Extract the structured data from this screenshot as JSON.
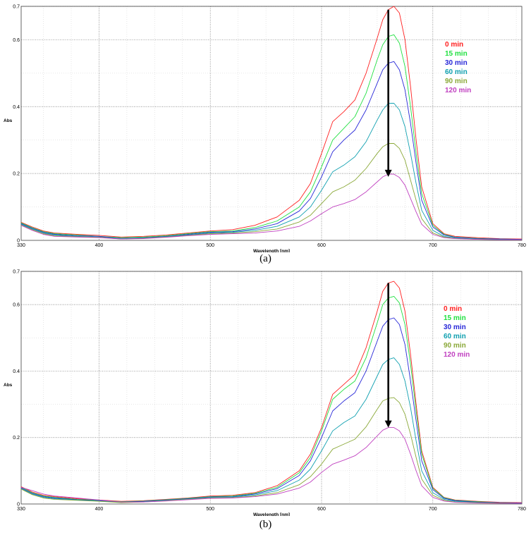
{
  "chart_data": [
    {
      "type": "line",
      "caption": "(a)",
      "xlabel": "Wavelength [nm]",
      "ylabel": "Abs",
      "xlim": [
        330,
        780
      ],
      "ylim": [
        0,
        0.7
      ],
      "xticks": [
        330,
        400,
        500,
        600,
        700,
        780
      ],
      "yticks": [
        0,
        0.2,
        0.4,
        0.6,
        0.7
      ],
      "ytick_labels": [
        "0",
        "0.2",
        "0.4",
        "0.6",
        "0.7"
      ],
      "grid": true,
      "legend_position": "top-right",
      "annotation": "arrow pointing down at peak",
      "arrow": {
        "x": 660,
        "y_from": 0.69,
        "y_to": 0.19
      },
      "series": [
        {
          "name": "0 min",
          "color": "#ff2020",
          "x": [
            330,
            340,
            350,
            360,
            380,
            400,
            420,
            440,
            460,
            480,
            500,
            520,
            540,
            560,
            580,
            590,
            600,
            610,
            620,
            630,
            640,
            650,
            655,
            660,
            665,
            670,
            675,
            680,
            685,
            690,
            700,
            710,
            720,
            740,
            760,
            780
          ],
          "y": [
            0.054,
            0.04,
            0.028,
            0.022,
            0.018,
            0.015,
            0.01,
            0.012,
            0.016,
            0.022,
            0.028,
            0.032,
            0.045,
            0.07,
            0.12,
            0.17,
            0.26,
            0.355,
            0.385,
            0.42,
            0.5,
            0.605,
            0.66,
            0.69,
            0.7,
            0.68,
            0.6,
            0.46,
            0.3,
            0.16,
            0.05,
            0.02,
            0.012,
            0.008,
            0.005,
            0.004
          ]
        },
        {
          "name": "15 min",
          "color": "#20e040",
          "x": [
            330,
            340,
            350,
            360,
            380,
            400,
            420,
            440,
            460,
            480,
            500,
            520,
            540,
            560,
            580,
            590,
            600,
            610,
            620,
            630,
            640,
            650,
            655,
            660,
            665,
            670,
            675,
            680,
            685,
            690,
            700,
            710,
            720,
            740,
            760,
            780
          ],
          "y": [
            0.052,
            0.038,
            0.026,
            0.02,
            0.016,
            0.012,
            0.008,
            0.01,
            0.014,
            0.02,
            0.026,
            0.028,
            0.038,
            0.058,
            0.1,
            0.145,
            0.22,
            0.3,
            0.335,
            0.37,
            0.44,
            0.54,
            0.585,
            0.61,
            0.615,
            0.59,
            0.52,
            0.4,
            0.26,
            0.14,
            0.045,
            0.018,
            0.01,
            0.006,
            0.004,
            0.003
          ]
        },
        {
          "name": "30 min",
          "color": "#2828d8",
          "x": [
            330,
            340,
            350,
            360,
            380,
            400,
            420,
            440,
            460,
            480,
            500,
            520,
            540,
            560,
            580,
            590,
            600,
            610,
            620,
            630,
            640,
            650,
            655,
            660,
            665,
            670,
            675,
            680,
            685,
            690,
            700,
            710,
            720,
            740,
            760,
            780
          ],
          "y": [
            0.05,
            0.036,
            0.024,
            0.018,
            0.014,
            0.012,
            0.006,
            0.008,
            0.012,
            0.018,
            0.024,
            0.026,
            0.034,
            0.05,
            0.088,
            0.125,
            0.19,
            0.265,
            0.3,
            0.33,
            0.39,
            0.47,
            0.51,
            0.53,
            0.535,
            0.51,
            0.45,
            0.35,
            0.23,
            0.12,
            0.04,
            0.016,
            0.009,
            0.005,
            0.004,
            0.003
          ]
        },
        {
          "name": "60 min",
          "color": "#10a0b0",
          "x": [
            330,
            340,
            350,
            360,
            380,
            400,
            420,
            440,
            460,
            480,
            500,
            520,
            540,
            560,
            580,
            590,
            600,
            610,
            620,
            630,
            640,
            650,
            655,
            660,
            665,
            670,
            675,
            680,
            685,
            690,
            700,
            710,
            720,
            740,
            760,
            780
          ],
          "y": [
            0.048,
            0.034,
            0.022,
            0.016,
            0.012,
            0.01,
            0.005,
            0.007,
            0.011,
            0.016,
            0.022,
            0.024,
            0.03,
            0.042,
            0.07,
            0.1,
            0.15,
            0.205,
            0.225,
            0.25,
            0.295,
            0.36,
            0.39,
            0.41,
            0.41,
            0.39,
            0.34,
            0.26,
            0.17,
            0.09,
            0.03,
            0.012,
            0.007,
            0.004,
            0.003,
            0.002
          ]
        },
        {
          "name": "90 min",
          "color": "#8aa838",
          "x": [
            330,
            340,
            350,
            360,
            380,
            400,
            420,
            440,
            460,
            480,
            500,
            520,
            540,
            560,
            580,
            590,
            600,
            610,
            620,
            630,
            640,
            650,
            655,
            660,
            665,
            670,
            675,
            680,
            685,
            690,
            700,
            710,
            720,
            740,
            760,
            780
          ],
          "y": [
            0.046,
            0.032,
            0.02,
            0.014,
            0.011,
            0.009,
            0.004,
            0.006,
            0.01,
            0.015,
            0.02,
            0.022,
            0.026,
            0.034,
            0.055,
            0.075,
            0.11,
            0.145,
            0.16,
            0.18,
            0.215,
            0.26,
            0.28,
            0.29,
            0.29,
            0.275,
            0.24,
            0.18,
            0.12,
            0.065,
            0.022,
            0.01,
            0.006,
            0.003,
            0.002,
            0.002
          ]
        },
        {
          "name": "120 min",
          "color": "#c040c0",
          "x": [
            330,
            340,
            350,
            360,
            380,
            400,
            420,
            440,
            460,
            480,
            500,
            520,
            540,
            560,
            580,
            590,
            600,
            610,
            620,
            630,
            640,
            650,
            655,
            660,
            665,
            670,
            675,
            680,
            685,
            690,
            700,
            710,
            720,
            740,
            760,
            780
          ],
          "y": [
            0.045,
            0.03,
            0.018,
            0.012,
            0.01,
            0.008,
            0.004,
            0.005,
            0.009,
            0.014,
            0.018,
            0.02,
            0.022,
            0.028,
            0.042,
            0.058,
            0.08,
            0.1,
            0.11,
            0.122,
            0.145,
            0.175,
            0.19,
            0.198,
            0.198,
            0.188,
            0.165,
            0.125,
            0.085,
            0.048,
            0.018,
            0.008,
            0.005,
            0.003,
            0.002,
            0.002
          ]
        }
      ]
    },
    {
      "type": "line",
      "caption": "(b)",
      "xlabel": "Wavelength [nm]",
      "ylabel": "Abs",
      "xlim": [
        330,
        780
      ],
      "ylim": [
        0,
        0.7
      ],
      "xticks": [
        330,
        400,
        500,
        600,
        700,
        780
      ],
      "yticks": [
        0,
        0.2,
        0.4,
        0.6,
        0.7
      ],
      "ytick_labels": [
        "0",
        "0.2",
        "0.4",
        "0.6",
        "0.7"
      ],
      "grid": true,
      "legend_position": "top-right",
      "annotation": "arrow pointing down at peak",
      "arrow": {
        "x": 660,
        "y_from": 0.665,
        "y_to": 0.23
      },
      "series": [
        {
          "name": "0 min",
          "color": "#ff2020",
          "x": [
            330,
            340,
            350,
            360,
            380,
            400,
            420,
            440,
            460,
            480,
            500,
            520,
            540,
            560,
            580,
            590,
            600,
            610,
            620,
            630,
            640,
            650,
            655,
            660,
            665,
            670,
            675,
            680,
            685,
            690,
            700,
            710,
            720,
            740,
            760,
            780
          ],
          "y": [
            0.052,
            0.036,
            0.026,
            0.022,
            0.016,
            0.012,
            0.008,
            0.01,
            0.014,
            0.018,
            0.024,
            0.026,
            0.034,
            0.055,
            0.1,
            0.15,
            0.23,
            0.33,
            0.36,
            0.39,
            0.47,
            0.58,
            0.64,
            0.665,
            0.67,
            0.65,
            0.58,
            0.45,
            0.3,
            0.16,
            0.05,
            0.02,
            0.012,
            0.008,
            0.005,
            0.004
          ]
        },
        {
          "name": "15 min",
          "color": "#20e040",
          "x": [
            330,
            340,
            350,
            360,
            380,
            400,
            420,
            440,
            460,
            480,
            500,
            520,
            540,
            560,
            580,
            590,
            600,
            610,
            620,
            630,
            640,
            650,
            655,
            660,
            665,
            670,
            675,
            680,
            685,
            690,
            700,
            710,
            720,
            740,
            760,
            780
          ],
          "y": [
            0.05,
            0.034,
            0.024,
            0.02,
            0.014,
            0.011,
            0.007,
            0.009,
            0.013,
            0.017,
            0.022,
            0.024,
            0.032,
            0.05,
            0.094,
            0.14,
            0.22,
            0.315,
            0.345,
            0.37,
            0.44,
            0.545,
            0.6,
            0.62,
            0.625,
            0.605,
            0.54,
            0.42,
            0.28,
            0.15,
            0.047,
            0.019,
            0.011,
            0.007,
            0.004,
            0.003
          ]
        },
        {
          "name": "30 min",
          "color": "#2828d8",
          "x": [
            330,
            340,
            350,
            360,
            380,
            400,
            420,
            440,
            460,
            480,
            500,
            520,
            540,
            560,
            580,
            590,
            600,
            610,
            620,
            630,
            640,
            650,
            655,
            660,
            665,
            670,
            675,
            680,
            685,
            690,
            700,
            710,
            720,
            740,
            760,
            780
          ],
          "y": [
            0.048,
            0.032,
            0.022,
            0.018,
            0.013,
            0.01,
            0.006,
            0.008,
            0.012,
            0.016,
            0.021,
            0.022,
            0.03,
            0.046,
            0.086,
            0.13,
            0.2,
            0.28,
            0.31,
            0.335,
            0.4,
            0.49,
            0.535,
            0.555,
            0.56,
            0.54,
            0.48,
            0.37,
            0.25,
            0.13,
            0.043,
            0.017,
            0.01,
            0.006,
            0.004,
            0.003
          ]
        },
        {
          "name": "60 min",
          "color": "#10a0b0",
          "x": [
            330,
            340,
            350,
            360,
            380,
            400,
            420,
            440,
            460,
            480,
            500,
            520,
            540,
            560,
            580,
            590,
            600,
            610,
            620,
            630,
            640,
            650,
            655,
            660,
            665,
            670,
            675,
            680,
            685,
            690,
            700,
            710,
            720,
            740,
            760,
            780
          ],
          "y": [
            0.046,
            0.03,
            0.02,
            0.016,
            0.012,
            0.009,
            0.005,
            0.007,
            0.011,
            0.015,
            0.02,
            0.021,
            0.027,
            0.04,
            0.072,
            0.105,
            0.16,
            0.22,
            0.245,
            0.265,
            0.315,
            0.385,
            0.42,
            0.435,
            0.44,
            0.42,
            0.37,
            0.29,
            0.19,
            0.1,
            0.034,
            0.014,
            0.008,
            0.005,
            0.003,
            0.002
          ]
        },
        {
          "name": "90 min",
          "color": "#8aa838",
          "x": [
            330,
            340,
            350,
            360,
            380,
            400,
            420,
            440,
            460,
            480,
            500,
            520,
            540,
            560,
            580,
            590,
            600,
            610,
            620,
            630,
            640,
            650,
            655,
            660,
            665,
            670,
            675,
            680,
            685,
            690,
            700,
            710,
            720,
            740,
            760,
            780
          ],
          "y": [
            0.045,
            0.028,
            0.018,
            0.014,
            0.011,
            0.008,
            0.004,
            0.006,
            0.01,
            0.014,
            0.018,
            0.019,
            0.024,
            0.034,
            0.058,
            0.082,
            0.12,
            0.165,
            0.18,
            0.195,
            0.232,
            0.285,
            0.31,
            0.318,
            0.32,
            0.305,
            0.27,
            0.21,
            0.14,
            0.075,
            0.026,
            0.011,
            0.006,
            0.004,
            0.003,
            0.002
          ]
        },
        {
          "name": "120 min",
          "color": "#c040c0",
          "x": [
            330,
            340,
            350,
            360,
            380,
            400,
            420,
            440,
            460,
            480,
            500,
            520,
            540,
            560,
            580,
            590,
            600,
            610,
            620,
            630,
            640,
            650,
            655,
            660,
            665,
            670,
            675,
            680,
            685,
            690,
            700,
            710,
            720,
            740,
            760,
            780
          ],
          "y": [
            0.05,
            0.04,
            0.03,
            0.024,
            0.018,
            0.012,
            0.006,
            0.006,
            0.009,
            0.013,
            0.017,
            0.018,
            0.022,
            0.03,
            0.048,
            0.066,
            0.095,
            0.12,
            0.132,
            0.145,
            0.17,
            0.205,
            0.222,
            0.23,
            0.23,
            0.22,
            0.195,
            0.15,
            0.1,
            0.055,
            0.02,
            0.009,
            0.005,
            0.003,
            0.002,
            0.002
          ]
        }
      ]
    }
  ]
}
